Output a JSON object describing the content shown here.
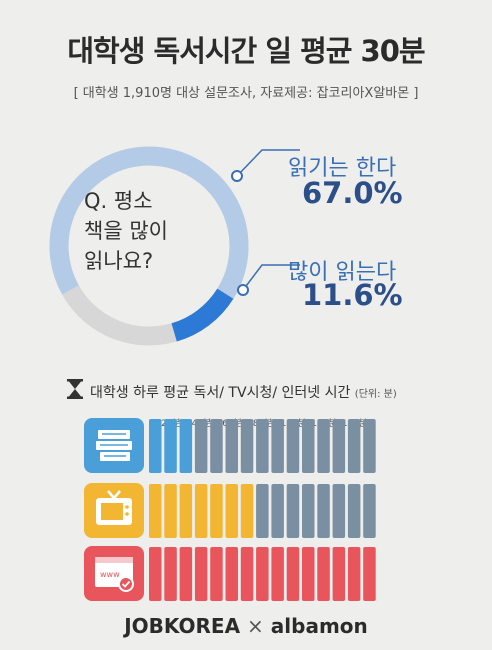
{
  "title": "대학생 독서시간 일 평균 30분",
  "subtitle": "[ 대학생 1,910명 대상 설문조사, 자료제공: 잡코리아X알바몬 ]",
  "donut": {
    "question_lines": [
      "Q. 평소",
      "책을 많이",
      "읽나요?"
    ],
    "labels": [
      {
        "text": "읽기는 한다",
        "value": "67.0%"
      },
      {
        "text": "많이 읽는다",
        "value": "11.6%"
      }
    ],
    "colors": {
      "read_sometimes": "#b3cbe6",
      "read_a_lot": "#2d7ad6",
      "other": "#d7d7d7"
    }
  },
  "section": {
    "title": "대학생 하루 평균 독서/ TV시청/ 인터넷 시간",
    "unit": "(단위: 분)"
  },
  "footer": {
    "brand1": "JOBKOREA",
    "separator": "×",
    "brand2": "albamon"
  },
  "chart_data": [
    {
      "type": "pie",
      "categories": [
        "읽기는 한다",
        "많이 읽는다",
        "기타"
      ],
      "values": [
        67.0,
        11.6,
        21.4
      ],
      "title": "Q. 평소 책을 많이 읽나요?"
    },
    {
      "type": "bar",
      "orientation": "horizontal",
      "title": "대학생 하루 평균 독서/ TV시청/ 인터넷 시간",
      "unit": "(단위: 분)",
      "categories": [
        "독서",
        "TV시청",
        "인터넷"
      ],
      "icons": [
        "books-icon",
        "tv-icon",
        "internet-icon"
      ],
      "values": [
        30,
        70,
        150
      ],
      "segment_minutes": 10,
      "total_segments": 15,
      "ticks": [
        "20분",
        "40분",
        "60분",
        "80분",
        "100분",
        "120분",
        "140분"
      ],
      "tick_values": [
        20,
        40,
        60,
        80,
        100,
        120,
        140
      ],
      "colors": [
        "#4a9fd9",
        "#f2b632",
        "#e8555c"
      ],
      "empty_color": "#7b8fa3"
    }
  ]
}
